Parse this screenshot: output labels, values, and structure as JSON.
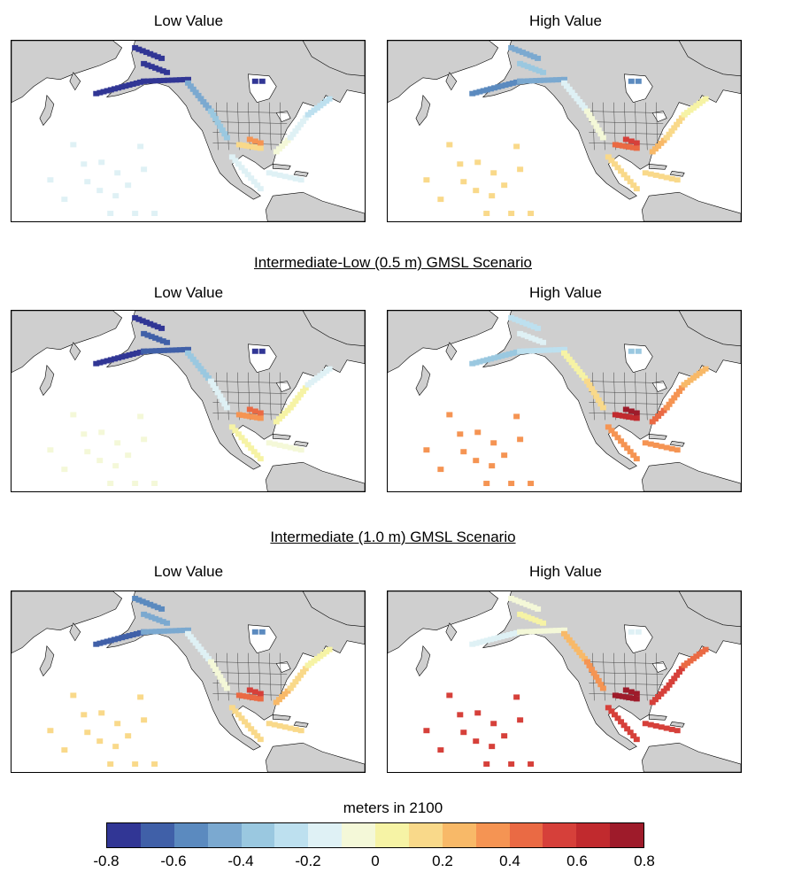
{
  "scenarios": [
    {
      "title": "",
      "panels": [
        {
          "label": "Low Value",
          "level": -0.2
        },
        {
          "label": "High Value",
          "level": 0.1
        }
      ]
    },
    {
      "title": "Intermediate-Low (0.5 m) GMSL Scenario",
      "panels": [
        {
          "label": "Low Value",
          "level": -0.05
        },
        {
          "label": "High Value",
          "level": 0.3
        }
      ]
    },
    {
      "title": "Intermediate (1.0 m) GMSL Scenario",
      "panels": [
        {
          "label": "Low Value",
          "level": 0.1
        },
        {
          "label": "High Value",
          "level": 0.5
        }
      ]
    }
  ],
  "colorbar": {
    "title": "meters in 2100",
    "ticks": [
      "-0.8",
      "-0.6",
      "-0.4",
      "-0.2",
      "0",
      "0.2",
      "0.4",
      "0.6",
      "0.8"
    ],
    "colors": [
      "#313695",
      "#4060a8",
      "#5b8abf",
      "#7ba9d0",
      "#9ac8e0",
      "#bde0ef",
      "#dff1f5",
      "#f4f8d8",
      "#f6f3a5",
      "#f9d98a",
      "#f8b968",
      "#f59453",
      "#ea6a44",
      "#d6403a",
      "#c12a2e",
      "#9e1b2a"
    ]
  },
  "colors": {
    "land": "#cfcfcf",
    "land_border": "#000000",
    "state_lines": "#444444"
  }
}
